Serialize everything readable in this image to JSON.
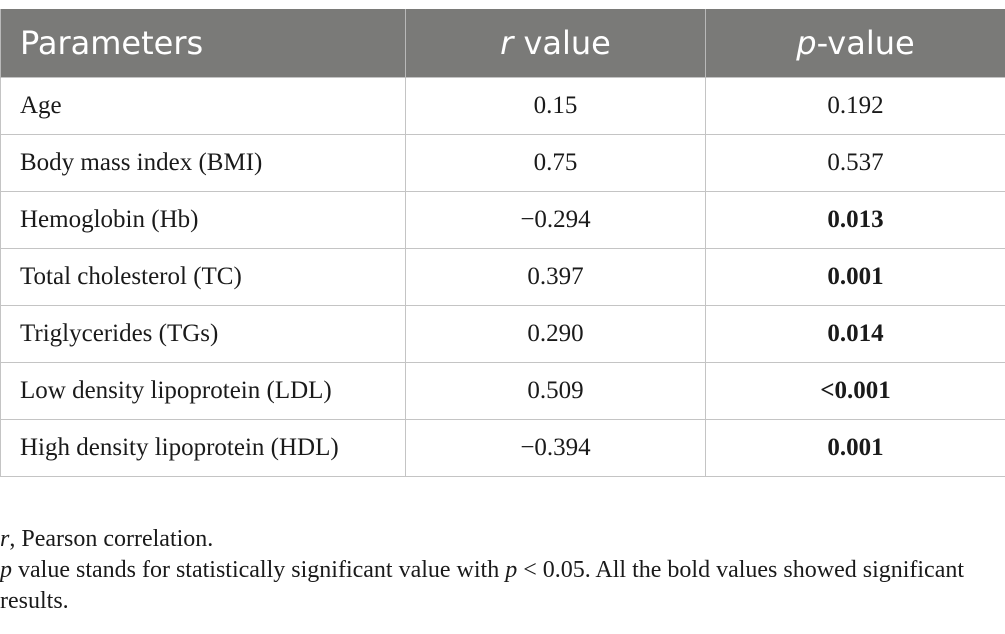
{
  "table": {
    "headers": {
      "parameters": "Parameters",
      "r_italic": "r",
      "r_rest": " value",
      "p_italic": "p",
      "p_rest": "-value"
    },
    "rows": [
      {
        "parameter": "Age",
        "r_value": "0.15",
        "p_value": "0.192",
        "significant": false
      },
      {
        "parameter": "Body mass index (BMI)",
        "r_value": "0.75",
        "p_value": "0.537",
        "significant": false
      },
      {
        "parameter": "Hemoglobin (Hb)",
        "r_value": "−0.294",
        "p_value": "0.013",
        "significant": true
      },
      {
        "parameter": "Total cholesterol (TC)",
        "r_value": "0.397",
        "p_value": "0.001",
        "significant": true
      },
      {
        "parameter": "Triglycerides (TGs)",
        "r_value": "0.290",
        "p_value": "0.014",
        "significant": true
      },
      {
        "parameter": "Low density lipoprotein (LDL)",
        "r_value": "0.509",
        "p_value": "<0.001",
        "significant": true
      },
      {
        "parameter": "High density lipoprotein (HDL)",
        "r_value": "−0.394",
        "p_value": "0.001",
        "significant": true
      }
    ]
  },
  "notes": {
    "note1_italic": "r",
    "note1_rest": ", Pearson correlation.",
    "note2_italic_a": "p",
    "note2_mid": " value stands for statistically significant value with ",
    "note2_italic_b": "p",
    "note2_rest": " < 0.05. All the bold values showed significant results."
  }
}
